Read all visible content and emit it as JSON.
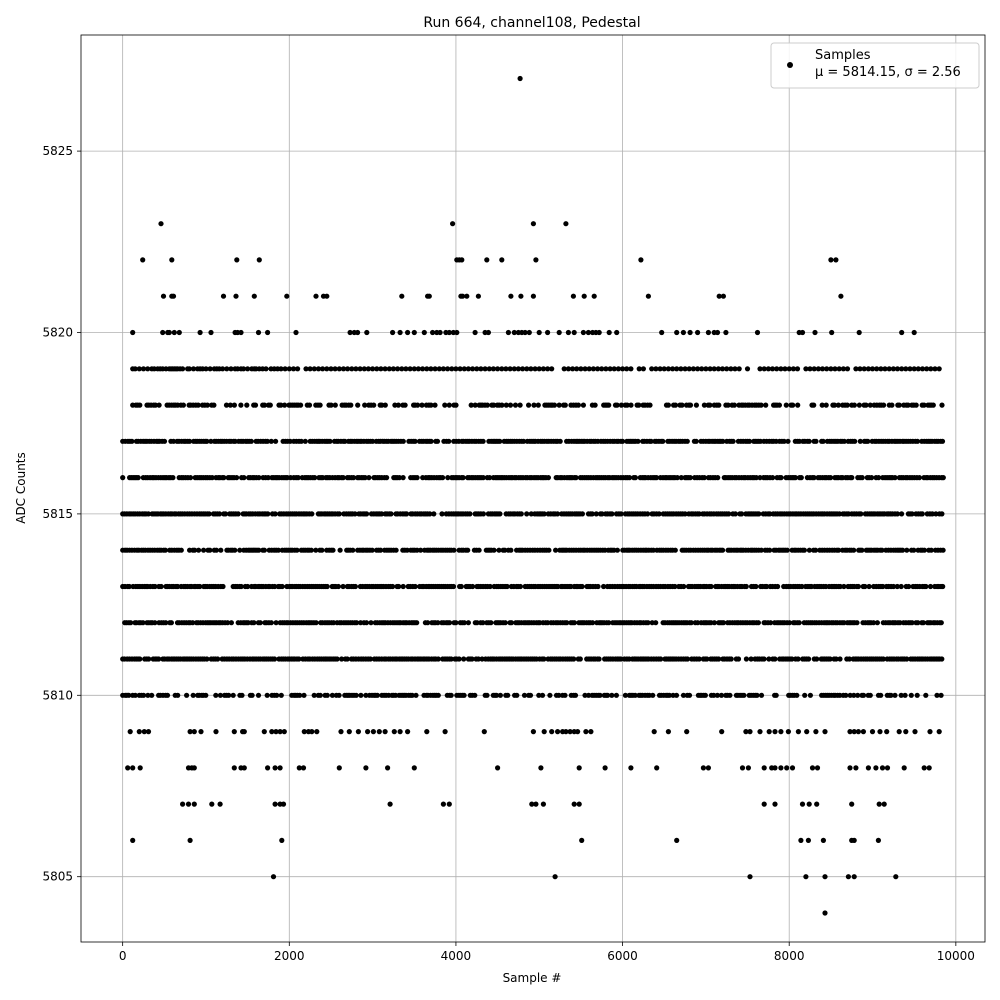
{
  "chart_data": {
    "type": "scatter",
    "title": "Run 664, channel108, Pedestal",
    "xlabel": "Sample #",
    "ylabel": "ADC Counts",
    "xlim": [
      -500,
      10350
    ],
    "ylim": [
      5803.2,
      5828.2
    ],
    "xticks": [
      0,
      2000,
      4000,
      6000,
      8000,
      10000
    ],
    "yticks": [
      5805,
      5810,
      5815,
      5820,
      5825
    ],
    "grid": true,
    "legend": {
      "placement": "top-right",
      "series_label": "Samples",
      "stats_text": "μ = 5814.15, σ = 2.56"
    },
    "series": [
      {
        "name": "Samples",
        "color": "#000000",
        "n_samples": 9850,
        "level_ranges": [
          {
            "y": 5811,
            "x_ranges": [
              [
                0,
                9850
              ]
            ]
          },
          {
            "y": 5812,
            "x_ranges": [
              [
                0,
                9850
              ]
            ]
          },
          {
            "y": 5813,
            "x_ranges": [
              [
                0,
                9850
              ]
            ]
          },
          {
            "y": 5814,
            "x_ranges": [
              [
                0,
                9850
              ]
            ]
          },
          {
            "y": 5815,
            "x_ranges": [
              [
                0,
                9850
              ]
            ]
          },
          {
            "y": 5816,
            "x_ranges": [
              [
                0,
                9850
              ]
            ]
          },
          {
            "y": 5817,
            "x_ranges": [
              [
                0,
                9850
              ]
            ]
          },
          {
            "y": 5818,
            "x_ranges": [
              [
                120,
                9850
              ]
            ]
          },
          {
            "y": 5810,
            "x_ranges": [
              [
                0,
                9850
              ]
            ]
          }
        ],
        "sparse_levels": [
          {
            "y": 5819,
            "x": [
              120,
              150,
              200,
              250,
              300,
              350,
              380,
              420,
              450,
              480,
              520,
              560,
              580,
              600,
              620,
              640,
              660,
              690,
              720,
              780,
              800,
              850,
              900,
              930,
              960,
              1000,
              1050,
              1100,
              1130,
              1160,
              1200,
              1250,
              1300,
              1350,
              1380,
              1420,
              1450,
              1500,
              1550,
              1580,
              1600,
              1640,
              1680,
              1720,
              1780,
              1820,
              1860,
              1900,
              1950,
              2000,
              2050,
              2100,
              2200,
              2250,
              2300,
              2350,
              2400,
              2450,
              2500,
              2550,
              2600,
              2650,
              2700,
              2750,
              2800,
              2850,
              2900,
              2950,
              3000,
              3050,
              3100,
              3150,
              3200,
              3250,
              3300,
              3350,
              3400,
              3450,
              3500,
              3550,
              3600,
              3650,
              3700,
              3750,
              3800,
              3850,
              3900,
              3950,
              4000,
              4050,
              4100,
              4150,
              4200,
              4250,
              4300,
              4350,
              4400,
              4450,
              4500,
              4550,
              4600,
              4650,
              4700,
              4750,
              4800,
              4850,
              4900,
              4950,
              5000,
              5050,
              5100,
              5150,
              5300,
              5350,
              5400,
              5450,
              5500,
              5550,
              5600,
              5650,
              5700,
              5750,
              5800,
              5850,
              5900,
              5950,
              6000,
              6050,
              6100,
              6200,
              6250,
              6350,
              6400,
              6450,
              6500,
              6550,
              6600,
              6650,
              6700,
              6750,
              6800,
              6850,
              6900,
              6950,
              7000,
              7050,
              7100,
              7150,
              7200,
              7250,
              7300,
              7350,
              7400,
              7500,
              7650,
              7700,
              7750,
              7800,
              7850,
              7900,
              7950,
              8000,
              8050,
              8100,
              8200,
              8250,
              8300,
              8350,
              8400,
              8450,
              8500,
              8550,
              8600,
              8650,
              8700,
              8800,
              8850,
              8900,
              8950,
              9000,
              9050,
              9100,
              9150,
              9200,
              9250,
              9300,
              9350,
              9400,
              9450,
              9500,
              9550,
              9600,
              9650,
              9700,
              9750,
              9800
            ]
          },
          {
            "y": 5820,
            "x": [
              120,
              480,
              540,
              560,
              620,
              680,
              930,
              1060,
              1350,
              1380,
              1420,
              1630,
              1740,
              2080,
              2730,
              2780,
              2820,
              2930,
              3240,
              3330,
              3420,
              3500,
              3620,
              3720,
              3770,
              3810,
              3880,
              3920,
              3970,
              4010,
              4230,
              4350,
              4390,
              4630,
              4700,
              4750,
              4790,
              4830,
              4880,
              5000,
              5100,
              5240,
              5350,
              5420,
              5530,
              5590,
              5640,
              5680,
              5720,
              5840,
              5930,
              6470,
              6650,
              6730,
              6810,
              6900,
              7030,
              7100,
              7140,
              7240,
              7620,
              8120,
              8160,
              8310,
              8510,
              8840,
              9350,
              9500
            ]
          },
          {
            "y": 5821,
            "x": [
              490,
              590,
              610,
              1210,
              1360,
              1580,
              1970,
              2320,
              2410,
              2450,
              3350,
              3660,
              3680,
              4060,
              4080,
              4130,
              4270,
              4660,
              4780,
              4930,
              5410,
              5540,
              5660,
              6310,
              7160,
              7210,
              8620
            ]
          },
          {
            "y": 5822,
            "x": [
              240,
              590,
              1370,
              1640,
              4010,
              4040,
              4070,
              4370,
              4550,
              4960,
              6220,
              8500,
              8560
            ]
          },
          {
            "y": 5823,
            "x": [
              460,
              3960,
              4930,
              5320
            ]
          },
          {
            "y": 5827,
            "x": [
              4770
            ]
          },
          {
            "y": 5809,
            "x": [
              90,
              200,
              260,
              310,
              810,
              860,
              940,
              1120,
              1340,
              1440,
              1460,
              1700,
              1790,
              1840,
              1890,
              1940,
              2180,
              2230,
              2270,
              2330,
              2620,
              2720,
              2830,
              2940,
              3010,
              3080,
              3150,
              3260,
              3330,
              3420,
              3650,
              3870,
              4340,
              4930,
              5060,
              5150,
              5220,
              5280,
              5320,
              5370,
              5420,
              5460,
              5560,
              5620,
              6380,
              6550,
              6770,
              7190,
              7480,
              7530,
              7650,
              7760,
              7830,
              7900,
              7990,
              8110,
              8210,
              8320,
              8430,
              8730,
              8780,
              8830,
              8890,
              9000,
              9090,
              9170,
              9320,
              9400,
              9510,
              9690,
              9800
            ]
          },
          {
            "y": 5808,
            "x": [
              60,
              120,
              210,
              790,
              830,
              860,
              1340,
              1420,
              1460,
              1740,
              1830,
              1890,
              2120,
              2170,
              2600,
              2920,
              3180,
              3500,
              4500,
              5020,
              5480,
              5790,
              6100,
              6410,
              6970,
              7030,
              7440,
              7510,
              7700,
              7790,
              7830,
              7900,
              7970,
              8040,
              8280,
              8340,
              8730,
              8800,
              8950,
              9040,
              9120,
              9180,
              9380,
              9620,
              9680
            ]
          },
          {
            "y": 5807,
            "x": [
              720,
              790,
              860,
              1070,
              1170,
              1830,
              1890,
              1930,
              3210,
              3850,
              3920,
              4910,
              4960,
              5050,
              5420,
              5480,
              7700,
              7830,
              8160,
              8240,
              8330,
              8750,
              9080,
              9140
            ]
          },
          {
            "y": 5806,
            "x": [
              120,
              810,
              1910,
              5510,
              6650,
              8140,
              8230,
              8410,
              8750,
              8780,
              9070
            ]
          },
          {
            "y": 5805,
            "x": [
              1810,
              5190,
              7530,
              8200,
              8710,
              8780,
              9280,
              8430
            ]
          },
          {
            "y": 5804,
            "x": [
              8430
            ]
          }
        ]
      }
    ]
  }
}
